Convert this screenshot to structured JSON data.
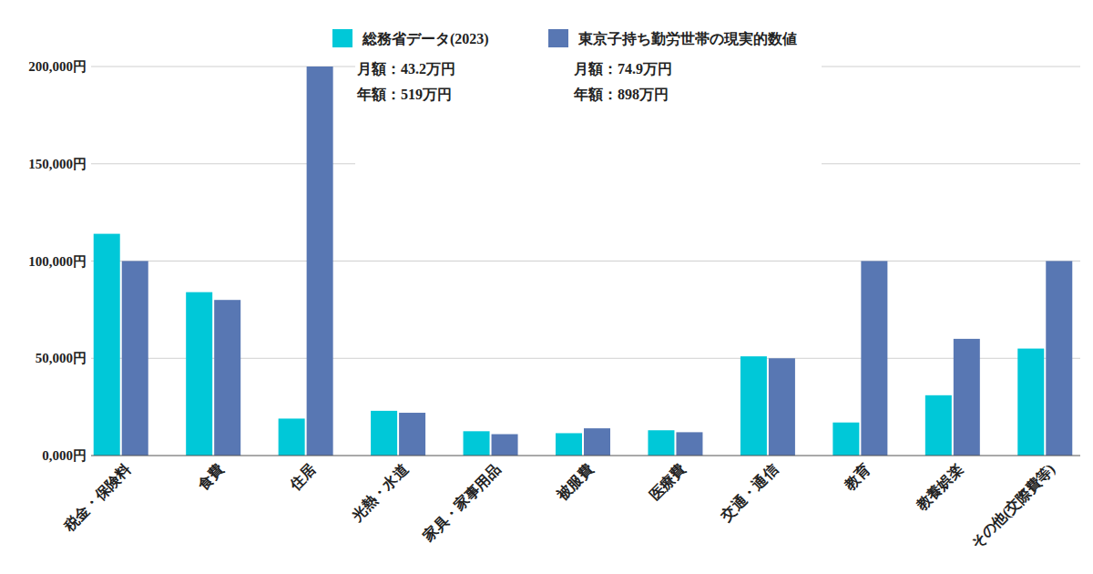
{
  "chart_data": {
    "type": "bar",
    "categories": [
      "税金・保険料",
      "食費",
      "住居",
      "光熱・水道",
      "家具・家事用品",
      "被服費",
      "医療費",
      "交通・通信",
      "教育",
      "教養娯楽",
      "その他(交際費等)"
    ],
    "series": [
      {
        "name": "総務省データ(2023)",
        "color": "#00C8D8",
        "values": [
          114000,
          84000,
          19000,
          23000,
          12500,
          11500,
          13000,
          51000,
          17000,
          31000,
          55000
        ]
      },
      {
        "name": "東京子持ち勤労世帯の現実的数値",
        "color": "#5877B3",
        "values": [
          100000,
          80000,
          200000,
          22000,
          11000,
          14000,
          12000,
          50000,
          100000,
          60000,
          100000
        ]
      }
    ],
    "annotations": [
      "月額：43.2万円",
      "年額：519万円",
      "月額：74.9万円",
      "年額：898万円"
    ],
    "ylim": [
      0,
      200000
    ],
    "yticks": [
      {
        "value": 0,
        "label": "0,000円"
      },
      {
        "value": 50000,
        "label": "50,000円"
      },
      {
        "value": 100000,
        "label": "100,000円"
      },
      {
        "value": 150000,
        "label": "150,000円"
      },
      {
        "value": 200000,
        "label": "200,000円"
      }
    ],
    "grid": true,
    "legend": "top"
  }
}
